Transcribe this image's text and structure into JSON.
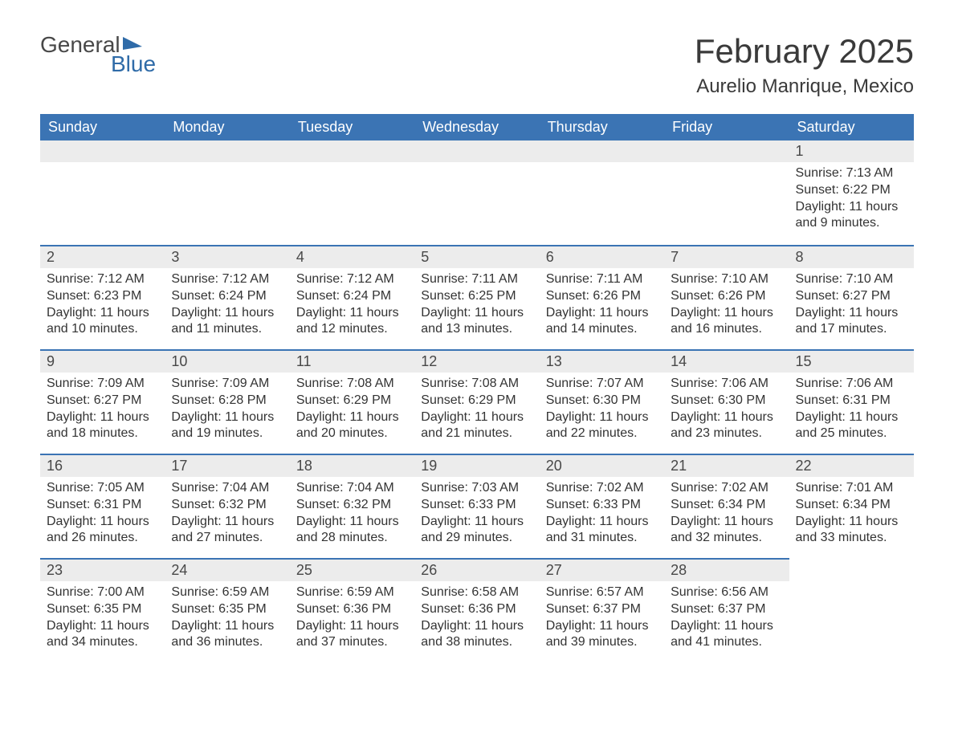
{
  "brand": {
    "word1": "General",
    "word2": "Blue",
    "icon_color": "#2f6ba8"
  },
  "title": "February 2025",
  "location": "Aurelio Manrique, Mexico",
  "colors": {
    "header_bg": "#3b74b4",
    "header_fg": "#ffffff",
    "dayhead_bg": "#ececec",
    "row_border": "#3b74b4",
    "text": "#333333",
    "background": "#ffffff"
  },
  "typography": {
    "title_fontsize": 42,
    "location_fontsize": 24,
    "dayhead_fontsize": 18,
    "body_fontsize": 16,
    "th_fontsize": 18
  },
  "weekdays": [
    "Sunday",
    "Monday",
    "Tuesday",
    "Wednesday",
    "Thursday",
    "Friday",
    "Saturday"
  ],
  "labels": {
    "sunrise": "Sunrise:",
    "sunset": "Sunset:",
    "daylight": "Daylight:"
  },
  "first_weekday_index": 6,
  "days": [
    {
      "n": 1,
      "sunrise": "7:13 AM",
      "sunset": "6:22 PM",
      "daylight": "11 hours and 9 minutes."
    },
    {
      "n": 2,
      "sunrise": "7:12 AM",
      "sunset": "6:23 PM",
      "daylight": "11 hours and 10 minutes."
    },
    {
      "n": 3,
      "sunrise": "7:12 AM",
      "sunset": "6:24 PM",
      "daylight": "11 hours and 11 minutes."
    },
    {
      "n": 4,
      "sunrise": "7:12 AM",
      "sunset": "6:24 PM",
      "daylight": "11 hours and 12 minutes."
    },
    {
      "n": 5,
      "sunrise": "7:11 AM",
      "sunset": "6:25 PM",
      "daylight": "11 hours and 13 minutes."
    },
    {
      "n": 6,
      "sunrise": "7:11 AM",
      "sunset": "6:26 PM",
      "daylight": "11 hours and 14 minutes."
    },
    {
      "n": 7,
      "sunrise": "7:10 AM",
      "sunset": "6:26 PM",
      "daylight": "11 hours and 16 minutes."
    },
    {
      "n": 8,
      "sunrise": "7:10 AM",
      "sunset": "6:27 PM",
      "daylight": "11 hours and 17 minutes."
    },
    {
      "n": 9,
      "sunrise": "7:09 AM",
      "sunset": "6:27 PM",
      "daylight": "11 hours and 18 minutes."
    },
    {
      "n": 10,
      "sunrise": "7:09 AM",
      "sunset": "6:28 PM",
      "daylight": "11 hours and 19 minutes."
    },
    {
      "n": 11,
      "sunrise": "7:08 AM",
      "sunset": "6:29 PM",
      "daylight": "11 hours and 20 minutes."
    },
    {
      "n": 12,
      "sunrise": "7:08 AM",
      "sunset": "6:29 PM",
      "daylight": "11 hours and 21 minutes."
    },
    {
      "n": 13,
      "sunrise": "7:07 AM",
      "sunset": "6:30 PM",
      "daylight": "11 hours and 22 minutes."
    },
    {
      "n": 14,
      "sunrise": "7:06 AM",
      "sunset": "6:30 PM",
      "daylight": "11 hours and 23 minutes."
    },
    {
      "n": 15,
      "sunrise": "7:06 AM",
      "sunset": "6:31 PM",
      "daylight": "11 hours and 25 minutes."
    },
    {
      "n": 16,
      "sunrise": "7:05 AM",
      "sunset": "6:31 PM",
      "daylight": "11 hours and 26 minutes."
    },
    {
      "n": 17,
      "sunrise": "7:04 AM",
      "sunset": "6:32 PM",
      "daylight": "11 hours and 27 minutes."
    },
    {
      "n": 18,
      "sunrise": "7:04 AM",
      "sunset": "6:32 PM",
      "daylight": "11 hours and 28 minutes."
    },
    {
      "n": 19,
      "sunrise": "7:03 AM",
      "sunset": "6:33 PM",
      "daylight": "11 hours and 29 minutes."
    },
    {
      "n": 20,
      "sunrise": "7:02 AM",
      "sunset": "6:33 PM",
      "daylight": "11 hours and 31 minutes."
    },
    {
      "n": 21,
      "sunrise": "7:02 AM",
      "sunset": "6:34 PM",
      "daylight": "11 hours and 32 minutes."
    },
    {
      "n": 22,
      "sunrise": "7:01 AM",
      "sunset": "6:34 PM",
      "daylight": "11 hours and 33 minutes."
    },
    {
      "n": 23,
      "sunrise": "7:00 AM",
      "sunset": "6:35 PM",
      "daylight": "11 hours and 34 minutes."
    },
    {
      "n": 24,
      "sunrise": "6:59 AM",
      "sunset": "6:35 PM",
      "daylight": "11 hours and 36 minutes."
    },
    {
      "n": 25,
      "sunrise": "6:59 AM",
      "sunset": "6:36 PM",
      "daylight": "11 hours and 37 minutes."
    },
    {
      "n": 26,
      "sunrise": "6:58 AM",
      "sunset": "6:36 PM",
      "daylight": "11 hours and 38 minutes."
    },
    {
      "n": 27,
      "sunrise": "6:57 AM",
      "sunset": "6:37 PM",
      "daylight": "11 hours and 39 minutes."
    },
    {
      "n": 28,
      "sunrise": "6:56 AM",
      "sunset": "6:37 PM",
      "daylight": "11 hours and 41 minutes."
    }
  ]
}
